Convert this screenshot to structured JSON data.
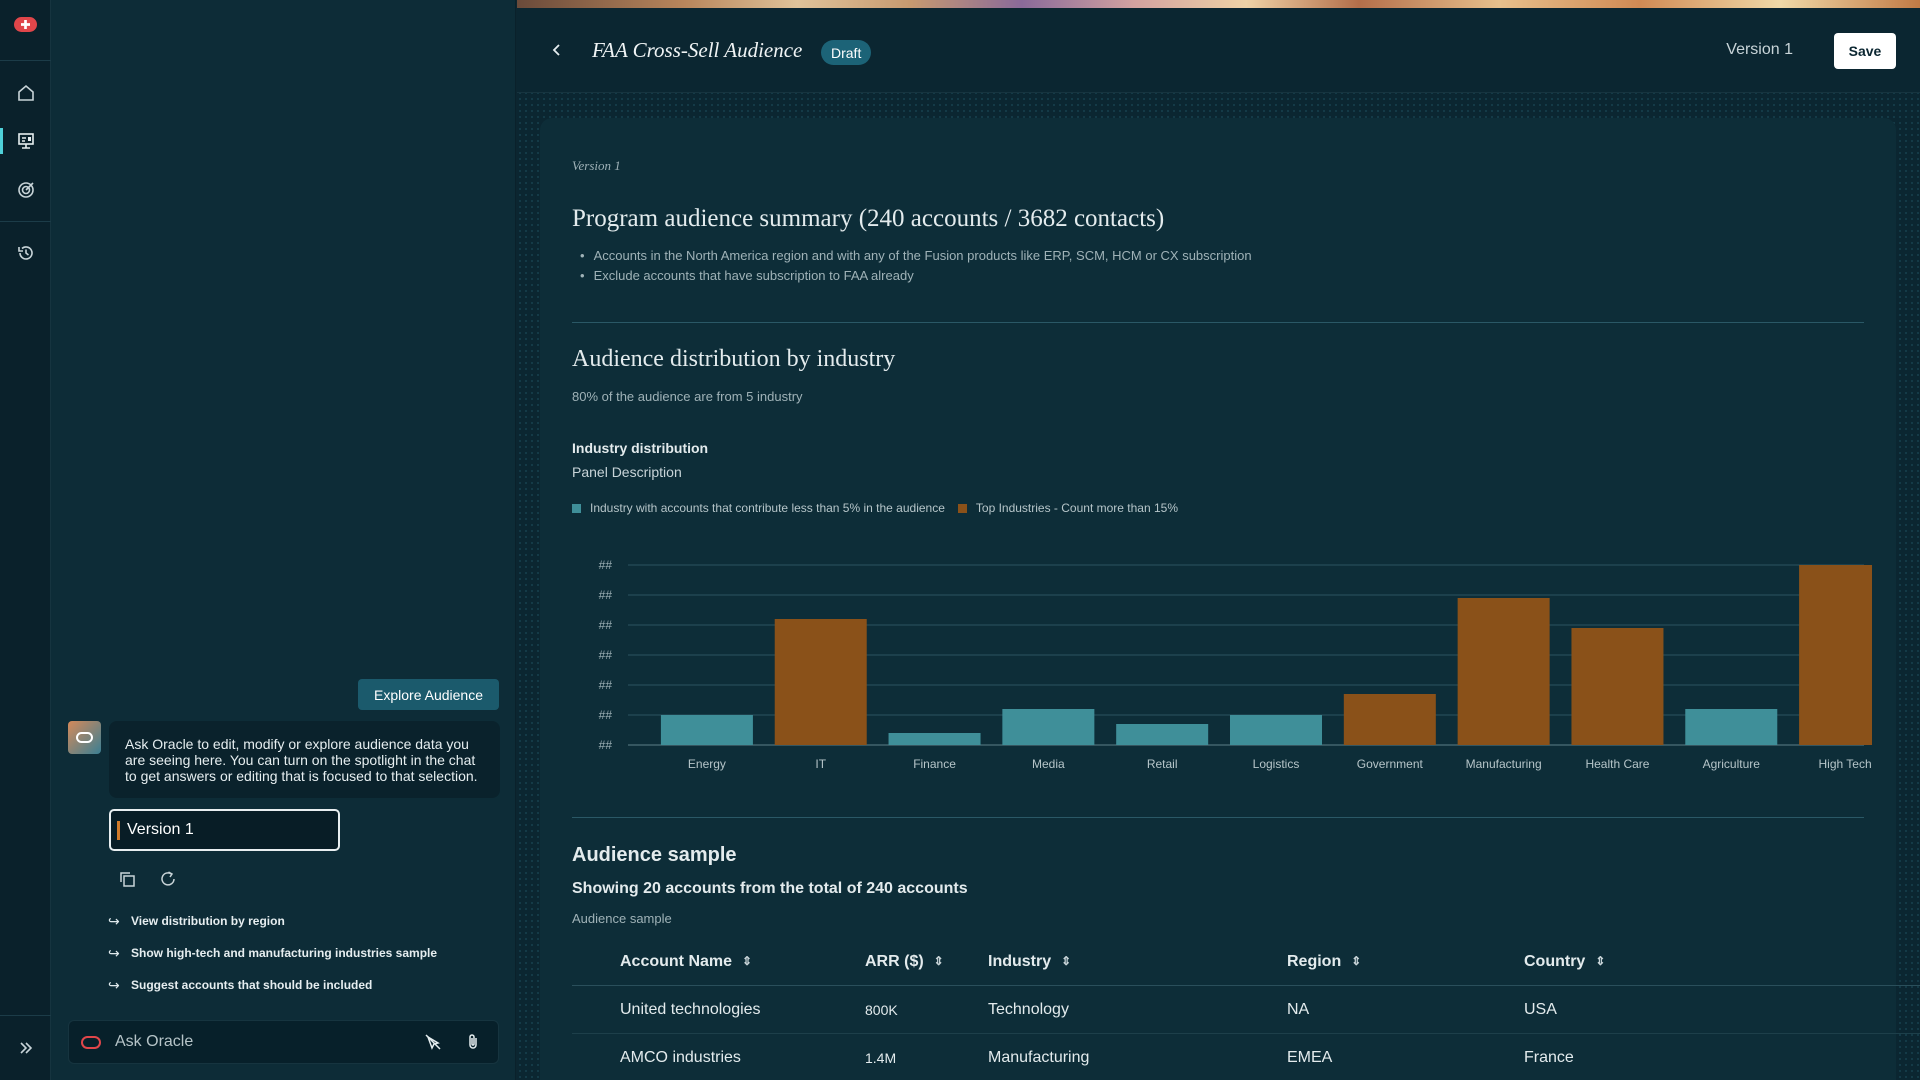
{
  "rail": {
    "icons": [
      "oracle-logo",
      "home-icon",
      "presentation-icon",
      "target-icon",
      "history-icon",
      "expand-icon"
    ]
  },
  "chat": {
    "explore_button": "Explore Audience",
    "bot_message": "Ask Oracle to edit, modify or explore audience data you are seeing here. You can turn on the spotlight in the chat to get answers or editing that is focused to that selection.",
    "version_value": "Version 1",
    "suggestions": [
      "View distribution by region",
      "Show high-tech and manufacturing industries sample",
      "Suggest accounts that should be included"
    ],
    "ask_placeholder": "Ask Oracle"
  },
  "header": {
    "title": "FAA Cross-Sell Audience",
    "status_badge": "Draft",
    "version_label": "Version 1",
    "save_label": "Save"
  },
  "content": {
    "version_caption": "Version 1",
    "summary_title": "Program audience summary (240 accounts / 3682 contacts)",
    "summary_bullets": [
      "Accounts in the North America region and with any of the Fusion products like ERP, SCM, HCM or CX subscription",
      "Exclude accounts that have subscription to FAA already"
    ],
    "distribution_title": "Audience distribution by industry",
    "distribution_subtitle": "80% of the audience are from 5 industry",
    "panel_title": "Industry distribution",
    "panel_description": "Panel Description",
    "sample_title": "Audience sample",
    "sample_showing": "Showing 20 accounts from the total of 240 accounts",
    "sample_label": "Audience sample"
  },
  "chart_data": {
    "type": "bar",
    "categories": [
      "Energy",
      "IT",
      "Finance",
      "Media",
      "Retail",
      "Logistics",
      "Government",
      "Manufacturing",
      "Health Care",
      "Agriculture",
      "High Tech"
    ],
    "series": [
      {
        "name": "Industry with accounts that contribute less than 5% in the audience",
        "color": "#3f8f99"
      },
      {
        "name": "Top Industries - Count more than 15%",
        "color": "#8a5119"
      }
    ],
    "values": [
      1.0,
      4.2,
      0.4,
      1.2,
      0.7,
      1.0,
      1.7,
      4.9,
      3.9,
      1.2,
      6.0
    ],
    "series_index": [
      0,
      1,
      0,
      0,
      0,
      0,
      1,
      1,
      1,
      0,
      1
    ],
    "y_tick_labels": [
      "##",
      "##",
      "##",
      "##",
      "##",
      "##",
      "##"
    ],
    "ylim": [
      0,
      6
    ],
    "grid": true,
    "legend_position": "top-left"
  },
  "table": {
    "columns": [
      "Account Name",
      "ARR ($)",
      "Industry",
      "Region",
      "Country"
    ],
    "rows": [
      [
        "United technologies",
        "800K",
        "Technology",
        "NA",
        "USA"
      ],
      [
        "AMCO industries",
        "1.4M",
        "Manufacturing",
        "EMEA",
        "France"
      ]
    ]
  }
}
